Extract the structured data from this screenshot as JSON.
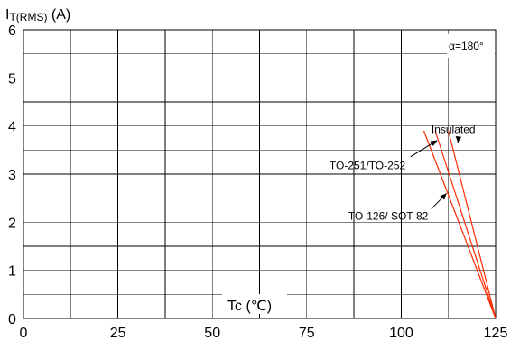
{
  "chart_data": {
    "type": "line",
    "ylabel_main": "I",
    "ylabel_sub": "T(RMS)",
    "ylabel_unit": " (A)",
    "xlabel": "Tc (℃)",
    "xlim": [
      0,
      125
    ],
    "ylim": [
      0,
      6
    ],
    "xticks": [
      0,
      25,
      50,
      75,
      100,
      125
    ],
    "yticks": [
      0,
      1,
      2,
      3,
      4,
      5,
      6
    ],
    "grid": true,
    "annotation_angle": "α=180°",
    "series": [
      {
        "name": "TO-126/ SOT-82",
        "x": [
          106,
          125
        ],
        "y": [
          3.9,
          0
        ],
        "label_x": 86,
        "label_y": 2.05,
        "point_x": 112,
        "point_y": 2.6
      },
      {
        "name": "TO-251/TO-252",
        "x": [
          109,
          125
        ],
        "y": [
          3.9,
          0
        ],
        "label_x": 81,
        "label_y": 3.1,
        "point_x": 109.5,
        "point_y": 3.7
      },
      {
        "name": "Insulated",
        "x": [
          112.5,
          125
        ],
        "y": [
          3.9,
          0
        ],
        "label_x": 108,
        "label_y": 3.85,
        "point_x": 115,
        "point_y": 3.65
      }
    ],
    "colors": {
      "curve": "#ff2a00"
    }
  }
}
